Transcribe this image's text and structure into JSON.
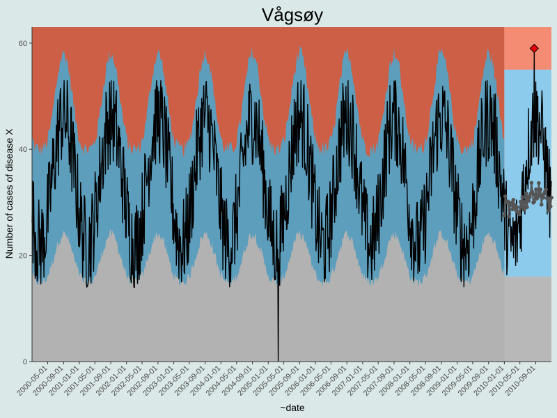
{
  "chart_data": {
    "type": "area",
    "title": "Vågsøy",
    "xlabel": "~date",
    "ylabel": "Number of cases of disease X",
    "ylim": [
      0,
      63
    ],
    "xlim": [
      "2000-01-01",
      "2010-12-31"
    ],
    "yticks": [
      0,
      20,
      40,
      60
    ],
    "xticks": [
      "2000-05-01",
      "2000-09-01",
      "2001-01-01",
      "2001-05-01",
      "2001-09-01",
      "2002-01-01",
      "2002-05-01",
      "2002-09-01",
      "2003-01-01",
      "2003-05-01",
      "2003-09-01",
      "2004-01-01",
      "2004-05-01",
      "2004-09-01",
      "2005-01-01",
      "2005-05-01",
      "2005-09-01",
      "2006-01-01",
      "2006-05-01",
      "2006-09-01",
      "2007-01-01",
      "2007-05-01",
      "2007-09-01",
      "2008-01-01",
      "2008-05-01",
      "2008-09-01",
      "2009-01-01",
      "2009-05-01",
      "2009-09-01",
      "2010-01-01",
      "2010-05-01",
      "2010-09-01"
    ],
    "baseline_period_end": "2010-01-01",
    "bands": {
      "baseline": {
        "low_color": "#b2b2b2",
        "normal_color": "#5d9ebd",
        "high_color": "#cc5f46",
        "lower_threshold_min": 15,
        "lower_threshold_max": 24,
        "upper_threshold_min": 40,
        "upper_threshold_max": 58
      },
      "current": {
        "low_color": "#b8b8b8",
        "normal_color": "#8ccbec",
        "high_color": "#f48c74",
        "lower_threshold": 16,
        "upper_threshold": 55
      }
    },
    "series": [
      {
        "color": "#000000",
        "summary": {
          "min": 0,
          "min_date": "2005-03-20",
          "max": 59,
          "max_date": "2010-08-20",
          "typical_range": [
            18,
            50
          ]
        }
      },
      {
        "color": "#555555",
        "summary": {
          "min": 25,
          "max": 35,
          "start": "2010-01-01",
          "end": "2010-12-31"
        }
      }
    ],
    "alert": {
      "date": "2010-08-20",
      "value": 59,
      "color": "#e8000b",
      "marker": "diamond"
    },
    "grid": false,
    "legend": "none"
  }
}
